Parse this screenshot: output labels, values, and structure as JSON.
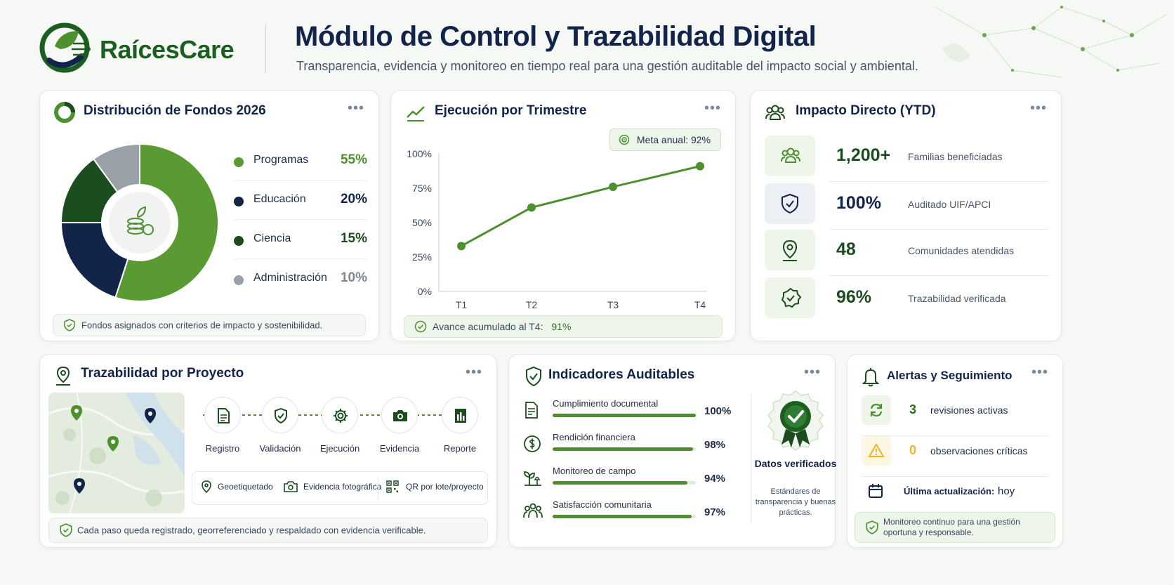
{
  "header": {
    "brand": "RaícesCare",
    "title": "Módulo de Control y Trazabilidad Digital",
    "subtitle": "Transparencia, evidencia y monitoreo en tiempo real para una gestión auditable del impacto social y ambiental."
  },
  "colors": {
    "accent_green": "#4e8f2f",
    "dark_green": "#1b4d1f",
    "navy": "#13244a",
    "gray": "#9aa0a8",
    "warning": "#f0b429"
  },
  "funds": {
    "title": "Distribución de Fondos 2026",
    "items": [
      {
        "label": "Programas",
        "value": "55%",
        "share": 55,
        "color": "#5a9a32"
      },
      {
        "label": "Educación",
        "value": "20%",
        "share": 20,
        "color": "#13244a"
      },
      {
        "label": "Ciencia",
        "value": "15%",
        "share": 15,
        "color": "#1b4d1f"
      },
      {
        "label": "Administración",
        "value": "10%",
        "share": 10,
        "color": "#9aa0a8"
      }
    ],
    "note": "Fondos asignados con criterios de impacto y sostenibilidad."
  },
  "execution": {
    "title": "Ejecución por Trimestre",
    "meta_label": "Meta anual:",
    "meta_value": "92%",
    "footer_label": "Avance acumulado al T4:",
    "footer_value": "91%"
  },
  "chart_data": {
    "type": "line",
    "categories": [
      "T1",
      "T2",
      "T3",
      "T4"
    ],
    "series": [
      {
        "values": [
          33,
          61,
          76,
          91
        ]
      }
    ],
    "title": "Ejecución por Trimestre",
    "xlabel": "",
    "ylabel": "",
    "ylim": [
      0,
      100
    ],
    "yticks": [
      "0%",
      "25%",
      "50%",
      "75%",
      "100%"
    ],
    "color": "#4e8f2f",
    "grid": false
  },
  "impact": {
    "title": "Impacto Directo (YTD)",
    "rows": [
      {
        "value": "1,200+",
        "label": "Familias beneficiadas",
        "icon": "users-icon"
      },
      {
        "value": "100%",
        "label": "Auditado UIF/APCI",
        "icon": "shield-check-icon"
      },
      {
        "value": "48",
        "label": "Comunidades atendidas",
        "icon": "map-pin-icon"
      },
      {
        "value": "96%",
        "label": "Trazabilidad verificada",
        "icon": "badge-check-icon"
      }
    ]
  },
  "traceability": {
    "title": "Trazabilidad por Proyecto",
    "steps": [
      {
        "label": "Registro",
        "icon": "document-icon"
      },
      {
        "label": "Validación",
        "icon": "shield-check-icon"
      },
      {
        "label": "Ejecución",
        "icon": "gear-icon"
      },
      {
        "label": "Evidencia",
        "icon": "camera-icon"
      },
      {
        "label": "Reporte",
        "icon": "report-icon"
      }
    ],
    "features": [
      "Geoetiquetado",
      "Evidencia fotográfica",
      "QR por lote/proyecto"
    ],
    "note": "Cada paso queda registrado, georreferenciado y respaldado con evidencia verificable."
  },
  "indicators": {
    "title": "Indicadores Auditables",
    "rows": [
      {
        "label": "Cumplimiento documental",
        "value": "100%",
        "pct": 100
      },
      {
        "label": "Rendición financiera",
        "value": "98%",
        "pct": 98
      },
      {
        "label": "Monitoreo de campo",
        "value": "94%",
        "pct": 94
      },
      {
        "label": "Satisfacción comunitaria",
        "value": "97%",
        "pct": 97
      }
    ],
    "verified_title": "Datos verificados",
    "verified_sub": "Estándares de transparencia y buenas prácticas."
  },
  "alerts": {
    "title": "Alertas y Seguimiento",
    "rows": [
      {
        "num": "3",
        "label": "revisiones activas"
      },
      {
        "num": "0",
        "label": "observaciones críticas"
      }
    ],
    "update_label": "Última actualización:",
    "update_value": "hoy",
    "note": "Monitoreo continuo para una gestión oportuna y responsable."
  }
}
